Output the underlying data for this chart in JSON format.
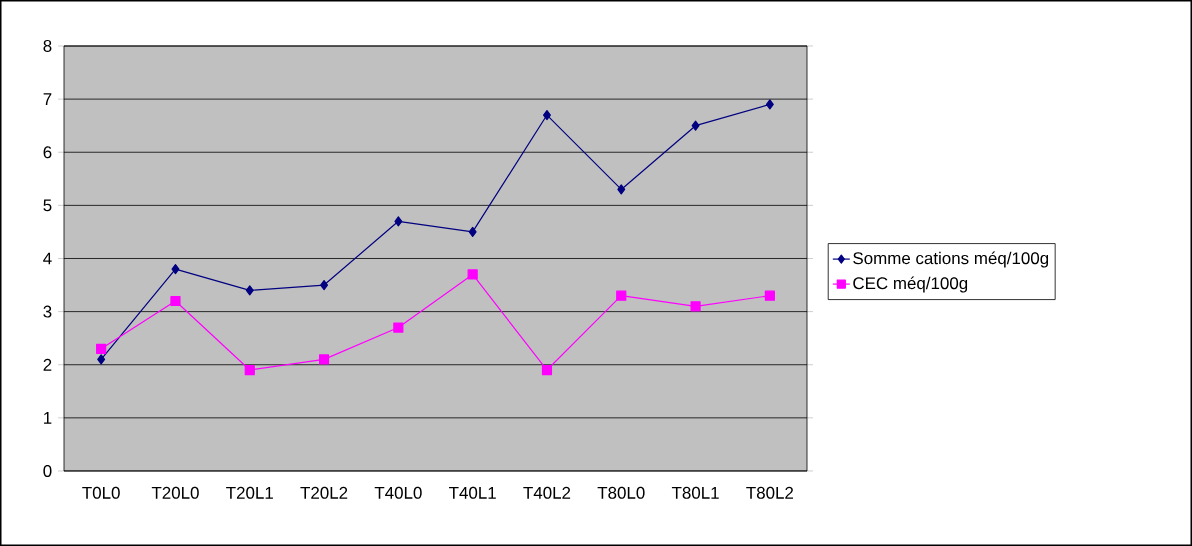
{
  "chart_data": {
    "type": "line",
    "categories": [
      "T0L0",
      "T20L0",
      "T20L1",
      "T20L2",
      "T40L0",
      "T40L1",
      "T40L2",
      "T80L0",
      "T80L1",
      "T80L2"
    ],
    "series": [
      {
        "name": "Somme cations méq/100g",
        "color": "#000080",
        "marker": "diamond",
        "values": [
          2.1,
          3.8,
          3.4,
          3.5,
          4.7,
          4.5,
          6.7,
          5.3,
          6.5,
          6.9
        ]
      },
      {
        "name": "CEC méq/100g",
        "color": "#ff00ff",
        "marker": "square",
        "values": [
          2.3,
          3.2,
          1.9,
          2.1,
          2.7,
          3.7,
          1.9,
          3.3,
          3.1,
          3.3
        ]
      }
    ],
    "ylim": [
      0,
      8
    ],
    "yticks": [
      0,
      1,
      2,
      3,
      4,
      5,
      6,
      7,
      8
    ],
    "grid": "y",
    "legend": "right",
    "line_style": "solid"
  }
}
